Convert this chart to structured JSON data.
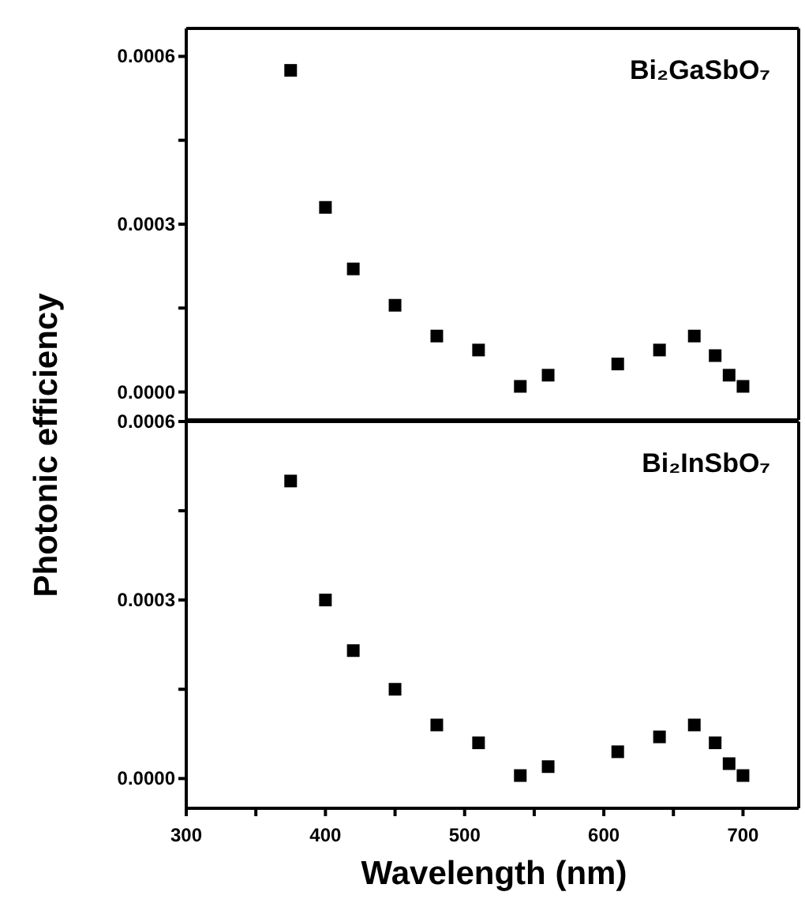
{
  "chart_data": [
    {
      "type": "scatter",
      "ylabel": "Photonic efficiency",
      "annotations": [
        "Bi₂GaSbO₇"
      ],
      "x": [
        375,
        400,
        420,
        450,
        480,
        510,
        540,
        560,
        610,
        640,
        665,
        680,
        690,
        700
      ],
      "series": [
        {
          "color": "#000000",
          "values": [
            0.000575,
            0.00033,
            0.00022,
            0.000155,
            0.0001,
            7.5e-05,
            1e-05,
            3e-05,
            5e-05,
            7.5e-05,
            0.0001,
            6.5e-05,
            3e-05,
            1e-05
          ]
        }
      ],
      "xlim": [
        300,
        740
      ],
      "ylim": [
        -5e-05,
        0.00065
      ],
      "yticks": [
        {
          "value": 0,
          "label": "0.0000"
        },
        {
          "value": 0.00015,
          "label": null
        },
        {
          "value": 0.0003,
          "label": "0.0003"
        },
        {
          "value": 0.00045,
          "label": null
        },
        {
          "value": 0.0006,
          "label": "0.0006"
        }
      ],
      "marker": "square",
      "tick_labels": "y"
    },
    {
      "type": "scatter",
      "xlabel": "Wavelength (nm)",
      "annotations": [
        "Bi₂InSbO₇"
      ],
      "x": [
        375,
        400,
        420,
        450,
        480,
        510,
        540,
        560,
        610,
        640,
        665,
        680,
        690,
        700
      ],
      "series": [
        {
          "color": "#000000",
          "values": [
            0.0005,
            0.0003,
            0.000215,
            0.00015,
            9e-05,
            6e-05,
            5e-06,
            2e-05,
            4.5e-05,
            7e-05,
            9e-05,
            6e-05,
            2.5e-05,
            5e-06
          ]
        }
      ],
      "xlim": [
        300,
        740
      ],
      "xticks": [
        300,
        {
          "value": 350,
          "label": null
        },
        400,
        {
          "value": 450,
          "label": null
        },
        500,
        {
          "value": 550,
          "label": null
        },
        600,
        {
          "value": 650,
          "label": null
        },
        700
      ],
      "ylim": [
        -5e-05,
        0.0006
      ],
      "yticks": [
        {
          "value": 0,
          "label": "0.0000"
        },
        {
          "value": 0.00015,
          "label": null
        },
        {
          "value": 0.0003,
          "label": "0.0003"
        },
        {
          "value": 0.00045,
          "label": null
        },
        {
          "value": 0.0006,
          "label": "0.0006"
        }
      ],
      "marker": "square"
    }
  ]
}
